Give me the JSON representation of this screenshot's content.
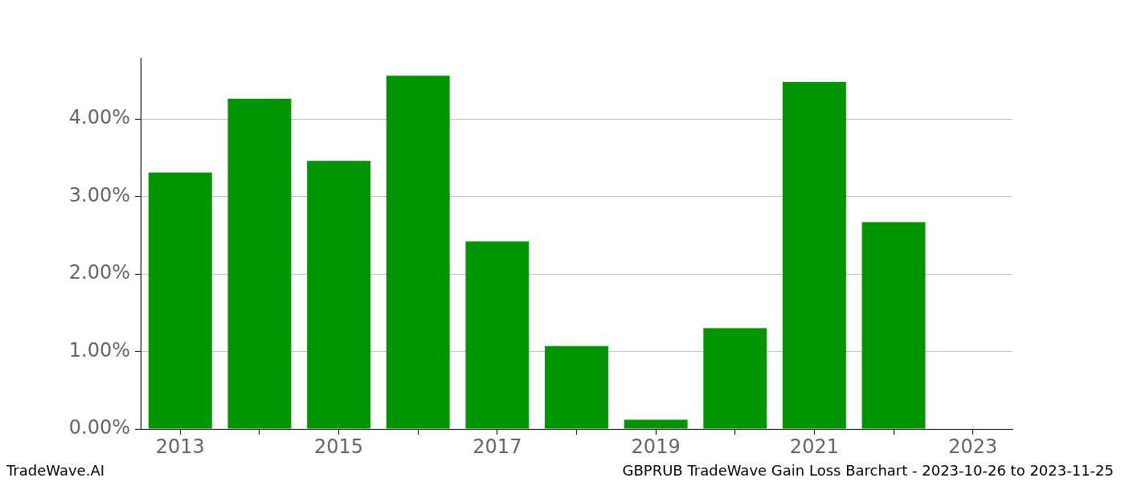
{
  "chart_data": {
    "type": "bar",
    "title": "GBPRUB TradeWave Gain Loss Barchart - 2023-10-26 to 2023-11-25",
    "annotations": [
      "TradeWave.AI"
    ],
    "categories": [
      "2013",
      null,
      "2015",
      null,
      "2017",
      null,
      "2019",
      null,
      "2021",
      null,
      "2023"
    ],
    "values": [
      3.31,
      4.26,
      3.46,
      4.56,
      2.42,
      1.07,
      0.12,
      1.3,
      4.48,
      2.67,
      null
    ],
    "color": "#009600",
    "ylim": [
      0,
      4.79
    ],
    "yticks": [
      {
        "value": 0,
        "label": "0.00%"
      },
      {
        "value": 1,
        "label": "1.00%"
      },
      {
        "value": 2,
        "label": "2.00%"
      },
      {
        "value": 3,
        "label": "3.00%"
      },
      {
        "value": 4,
        "label": "4.00%"
      }
    ],
    "grid": true
  }
}
